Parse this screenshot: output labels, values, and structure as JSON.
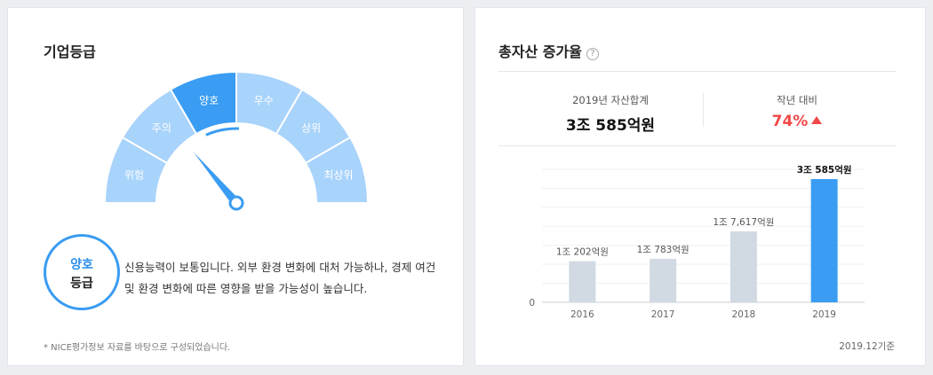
{
  "grade_card": {
    "title": "기업등급",
    "gauge": {
      "segments": [
        "위험",
        "주의",
        "양호",
        "우수",
        "상위",
        "최상위"
      ],
      "active_index": 2,
      "active_color": "#3a9cf2",
      "inactive_color": "#a8d3fb"
    },
    "badge": {
      "line1": "양호",
      "line2": "등급"
    },
    "description": "신용능력이 보통입니다. 외부 환경 변화에 대처 가능하나, 경제 여건 및 환경 변화에 따른 영향을 받을 가능성이 높습니다.",
    "footnote": "* NICE평가정보 자료를 바탕으로 구성되었습니다."
  },
  "asset_card": {
    "title": "총자산 증가율",
    "help_icon": "?",
    "total_label": "2019년 자산합계",
    "total_value": "3조 585억원",
    "yoy_label": "작년 대비",
    "yoy_value": "74%",
    "basis": "2019.12기준",
    "chart_data": {
      "type": "bar",
      "categories": [
        "2016",
        "2017",
        "2018",
        "2019"
      ],
      "values": [
        1.0202,
        1.0783,
        1.7617,
        3.0585
      ],
      "data_labels": [
        "1조 202억원",
        "1조 783억원",
        "1조 7,617억원",
        "3조 585억원"
      ],
      "ylim": [
        0,
        3.3
      ],
      "y_tick_labels": [
        "0"
      ],
      "highlight_index": 3,
      "colors": {
        "normal": "#d1dae3",
        "highlight": "#3a9cf2"
      },
      "grid": true
    }
  }
}
